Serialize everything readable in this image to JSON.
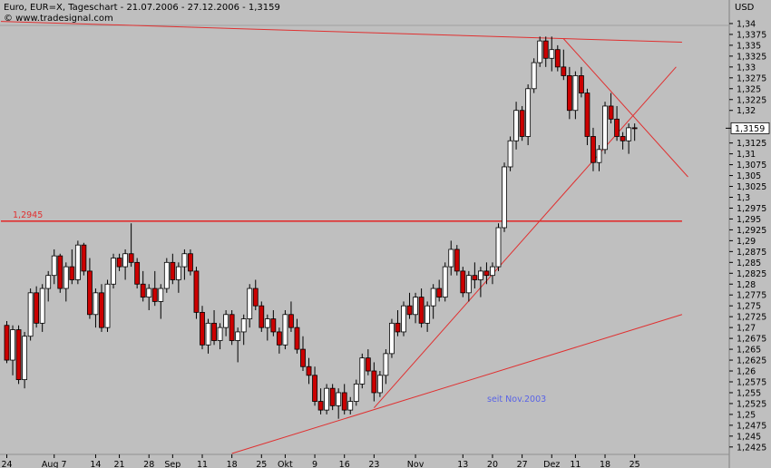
{
  "header": {
    "title": "Euro, EUR=X, Tageschart - 21.07.2006 - 27.12.2006 - 1,3159",
    "source": "© www.tradesignal.com",
    "currency": "USD"
  },
  "colors": {
    "background": "#bfbfbf",
    "up_candle": "#ffffff",
    "down_candle": "#cc0000",
    "trendline": "#e03030",
    "axis_text": "#000000",
    "annotation_text": "#5a64e6"
  },
  "chart_data": {
    "type": "candlestick",
    "title": "Euro, EUR=X, Tageschart - 21.07.2006 - 27.12.2006 - 1,3159",
    "ylabel": "USD",
    "ylim": [
      1.241,
      1.3425
    ],
    "last_value": 1.3159,
    "last_value_label": "1,3159",
    "yticks": [
      {
        "v": 1.2425,
        "l": "1,2425"
      },
      {
        "v": 1.245,
        "l": "1,245"
      },
      {
        "v": 1.2475,
        "l": "1,2475"
      },
      {
        "v": 1.25,
        "l": "1,25"
      },
      {
        "v": 1.2525,
        "l": "1,2525"
      },
      {
        "v": 1.255,
        "l": "1,255"
      },
      {
        "v": 1.2575,
        "l": "1,2575"
      },
      {
        "v": 1.26,
        "l": "1,26"
      },
      {
        "v": 1.2625,
        "l": "1,2625"
      },
      {
        "v": 1.265,
        "l": "1,265"
      },
      {
        "v": 1.2675,
        "l": "1,2675"
      },
      {
        "v": 1.27,
        "l": "1,27"
      },
      {
        "v": 1.2725,
        "l": "1,2725"
      },
      {
        "v": 1.275,
        "l": "1,275"
      },
      {
        "v": 1.2775,
        "l": "1,2775"
      },
      {
        "v": 1.28,
        "l": "1,28"
      },
      {
        "v": 1.2825,
        "l": "1,2825"
      },
      {
        "v": 1.285,
        "l": "1,285"
      },
      {
        "v": 1.2875,
        "l": "1,2875"
      },
      {
        "v": 1.29,
        "l": "1,29"
      },
      {
        "v": 1.2925,
        "l": "1,2925"
      },
      {
        "v": 1.295,
        "l": "1,295"
      },
      {
        "v": 1.2975,
        "l": "1,2975"
      },
      {
        "v": 1.3,
        "l": "1,3"
      },
      {
        "v": 1.3025,
        "l": "1,3025"
      },
      {
        "v": 1.305,
        "l": "1,305"
      },
      {
        "v": 1.3075,
        "l": "1,3075"
      },
      {
        "v": 1.31,
        "l": "1,31"
      },
      {
        "v": 1.3125,
        "l": "1,3125"
      },
      {
        "v": 1.32,
        "l": "1,32"
      },
      {
        "v": 1.3225,
        "l": "1,3225"
      },
      {
        "v": 1.325,
        "l": "1,325"
      },
      {
        "v": 1.3275,
        "l": "1,3275"
      },
      {
        "v": 1.33,
        "l": "1,33"
      },
      {
        "v": 1.3325,
        "l": "1,3325"
      },
      {
        "v": 1.335,
        "l": "1,335"
      },
      {
        "v": 1.3375,
        "l": "1,3375"
      },
      {
        "v": 1.34,
        "l": "1,34"
      }
    ],
    "xticks": [
      {
        "i": 0,
        "l": "24"
      },
      {
        "i": 8,
        "l": "Aug 7"
      },
      {
        "i": 15,
        "l": "14"
      },
      {
        "i": 19,
        "l": "21"
      },
      {
        "i": 24,
        "l": "28"
      },
      {
        "i": 28,
        "l": "Sep"
      },
      {
        "i": 33,
        "l": "11"
      },
      {
        "i": 38,
        "l": "18"
      },
      {
        "i": 43,
        "l": "25"
      },
      {
        "i": 47,
        "l": "Okt"
      },
      {
        "i": 52,
        "l": "9"
      },
      {
        "i": 57,
        "l": "16"
      },
      {
        "i": 62,
        "l": "23"
      },
      {
        "i": 69,
        "l": "Nov"
      },
      {
        "i": 77,
        "l": "13"
      },
      {
        "i": 82,
        "l": "20"
      },
      {
        "i": 87,
        "l": "27"
      },
      {
        "i": 92,
        "l": "Dez"
      },
      {
        "i": 96,
        "l": "11"
      },
      {
        "i": 101,
        "l": "18"
      },
      {
        "i": 106,
        "l": "25"
      }
    ],
    "candles": [
      [
        1.2705,
        1.2715,
        1.2618,
        1.2625
      ],
      [
        1.2625,
        1.2705,
        1.259,
        1.2695
      ],
      [
        1.2695,
        1.2705,
        1.257,
        1.258
      ],
      [
        1.258,
        1.269,
        1.256,
        1.268
      ],
      [
        1.268,
        1.279,
        1.267,
        1.278
      ],
      [
        1.278,
        1.2795,
        1.27,
        1.271
      ],
      [
        1.271,
        1.28,
        1.269,
        1.279
      ],
      [
        1.279,
        1.283,
        1.276,
        1.282
      ],
      [
        1.282,
        1.288,
        1.28,
        1.2865
      ],
      [
        1.2865,
        1.287,
        1.278,
        1.279
      ],
      [
        1.279,
        1.285,
        1.276,
        1.284
      ],
      [
        1.284,
        1.288,
        1.28,
        1.281
      ],
      [
        1.281,
        1.29,
        1.28,
        1.289
      ],
      [
        1.289,
        1.2895,
        1.282,
        1.283
      ],
      [
        1.283,
        1.286,
        1.272,
        1.273
      ],
      [
        1.273,
        1.279,
        1.27,
        1.278
      ],
      [
        1.278,
        1.28,
        1.269,
        1.27
      ],
      [
        1.27,
        1.281,
        1.269,
        1.28
      ],
      [
        1.28,
        1.287,
        1.279,
        1.286
      ],
      [
        1.286,
        1.287,
        1.283,
        1.284
      ],
      [
        1.284,
        1.288,
        1.281,
        1.287
      ],
      [
        1.287,
        1.294,
        1.284,
        1.285
      ],
      [
        1.285,
        1.286,
        1.279,
        1.28
      ],
      [
        1.28,
        1.283,
        1.276,
        1.277
      ],
      [
        1.277,
        1.28,
        1.274,
        1.279
      ],
      [
        1.279,
        1.283,
        1.275,
        1.276
      ],
      [
        1.276,
        1.28,
        1.272,
        1.279
      ],
      [
        1.279,
        1.286,
        1.278,
        1.285
      ],
      [
        1.285,
        1.287,
        1.28,
        1.281
      ],
      [
        1.281,
        1.285,
        1.278,
        1.284
      ],
      [
        1.284,
        1.288,
        1.281,
        1.287
      ],
      [
        1.287,
        1.288,
        1.282,
        1.283
      ],
      [
        1.283,
        1.284,
        1.272,
        1.2735
      ],
      [
        1.2735,
        1.275,
        1.265,
        1.266
      ],
      [
        1.266,
        1.272,
        1.264,
        1.271
      ],
      [
        1.271,
        1.274,
        1.266,
        1.267
      ],
      [
        1.267,
        1.271,
        1.265,
        1.27
      ],
      [
        1.27,
        1.274,
        1.268,
        1.273
      ],
      [
        1.273,
        1.274,
        1.266,
        1.267
      ],
      [
        1.267,
        1.27,
        1.262,
        1.269
      ],
      [
        1.269,
        1.273,
        1.266,
        1.272
      ],
      [
        1.272,
        1.28,
        1.27,
        1.279
      ],
      [
        1.279,
        1.281,
        1.274,
        1.275
      ],
      [
        1.275,
        1.276,
        1.269,
        1.27
      ],
      [
        1.27,
        1.273,
        1.267,
        1.272
      ],
      [
        1.272,
        1.274,
        1.268,
        1.269
      ],
      [
        1.269,
        1.27,
        1.264,
        1.266
      ],
      [
        1.266,
        1.274,
        1.265,
        1.273
      ],
      [
        1.273,
        1.276,
        1.269,
        1.27
      ],
      [
        1.27,
        1.272,
        1.264,
        1.265
      ],
      [
        1.265,
        1.268,
        1.26,
        1.261
      ],
      [
        1.261,
        1.263,
        1.257,
        1.259
      ],
      [
        1.259,
        1.261,
        1.252,
        1.253
      ],
      [
        1.253,
        1.256,
        1.25,
        1.251
      ],
      [
        1.251,
        1.257,
        1.25,
        1.256
      ],
      [
        1.256,
        1.257,
        1.251,
        1.252
      ],
      [
        1.252,
        1.256,
        1.249,
        1.255
      ],
      [
        1.255,
        1.257,
        1.25,
        1.251
      ],
      [
        1.251,
        1.254,
        1.25,
        1.253
      ],
      [
        1.253,
        1.258,
        1.252,
        1.257
      ],
      [
        1.257,
        1.264,
        1.256,
        1.263
      ],
      [
        1.263,
        1.265,
        1.259,
        1.26
      ],
      [
        1.26,
        1.262,
        1.253,
        1.255
      ],
      [
        1.255,
        1.26,
        1.254,
        1.259
      ],
      [
        1.259,
        1.265,
        1.257,
        1.264
      ],
      [
        1.264,
        1.272,
        1.263,
        1.271
      ],
      [
        1.271,
        1.274,
        1.268,
        1.269
      ],
      [
        1.269,
        1.276,
        1.268,
        1.275
      ],
      [
        1.275,
        1.278,
        1.272,
        1.273
      ],
      [
        1.273,
        1.278,
        1.271,
        1.277
      ],
      [
        1.277,
        1.279,
        1.27,
        1.271
      ],
      [
        1.271,
        1.276,
        1.269,
        1.275
      ],
      [
        1.275,
        1.28,
        1.272,
        1.279
      ],
      [
        1.279,
        1.281,
        1.276,
        1.277
      ],
      [
        1.277,
        1.285,
        1.276,
        1.284
      ],
      [
        1.284,
        1.29,
        1.282,
        1.288
      ],
      [
        1.288,
        1.289,
        1.282,
        1.283
      ],
      [
        1.283,
        1.284,
        1.277,
        1.278
      ],
      [
        1.278,
        1.283,
        1.276,
        1.282
      ],
      [
        1.282,
        1.285,
        1.279,
        1.281
      ],
      [
        1.281,
        1.284,
        1.277,
        1.283
      ],
      [
        1.283,
        1.285,
        1.28,
        1.282
      ],
      [
        1.282,
        1.285,
        1.28,
        1.284
      ],
      [
        1.284,
        1.294,
        1.283,
        1.293
      ],
      [
        1.293,
        1.308,
        1.292,
        1.307
      ],
      [
        1.307,
        1.314,
        1.306,
        1.313
      ],
      [
        1.313,
        1.322,
        1.311,
        1.32
      ],
      [
        1.32,
        1.321,
        1.313,
        1.314
      ],
      [
        1.314,
        1.326,
        1.312,
        1.325
      ],
      [
        1.325,
        1.332,
        1.324,
        1.331
      ],
      [
        1.331,
        1.337,
        1.33,
        1.336
      ],
      [
        1.336,
        1.337,
        1.33,
        1.332
      ],
      [
        1.332,
        1.337,
        1.329,
        1.334
      ],
      [
        1.334,
        1.335,
        1.329,
        1.33
      ],
      [
        1.33,
        1.334,
        1.327,
        1.328
      ],
      [
        1.328,
        1.33,
        1.318,
        1.32
      ],
      [
        1.32,
        1.329,
        1.318,
        1.328
      ],
      [
        1.328,
        1.33,
        1.323,
        1.324
      ],
      [
        1.324,
        1.325,
        1.312,
        1.314
      ],
      [
        1.314,
        1.316,
        1.306,
        1.308
      ],
      [
        1.308,
        1.312,
        1.306,
        1.311
      ],
      [
        1.311,
        1.322,
        1.31,
        1.321
      ],
      [
        1.321,
        1.324,
        1.317,
        1.318
      ],
      [
        1.318,
        1.321,
        1.313,
        1.314
      ],
      [
        1.314,
        1.315,
        1.311,
        1.313
      ],
      [
        1.313,
        1.317,
        1.31,
        1.316
      ],
      [
        1.316,
        1.317,
        1.313,
        1.3159
      ]
    ],
    "lines": [
      {
        "name": "resistance-top",
        "points": [
          [
            -1,
            1.3405
          ],
          [
            114,
            1.3357
          ]
        ]
      },
      {
        "name": "support-1.2945",
        "label": "1,2945",
        "points": [
          [
            -1,
            1.2945
          ],
          [
            114,
            1.2945
          ]
        ]
      },
      {
        "name": "triangle-upper",
        "points": [
          [
            94,
            1.3365
          ],
          [
            115,
            1.3047
          ]
        ]
      },
      {
        "name": "triangle-lower",
        "points": [
          [
            62,
            1.2515
          ],
          [
            113,
            1.33
          ]
        ]
      },
      {
        "name": "long-term-support",
        "label": "seit Nov.2003",
        "points": [
          [
            38,
            1.241
          ],
          [
            114,
            1.273
          ]
        ]
      }
    ]
  }
}
